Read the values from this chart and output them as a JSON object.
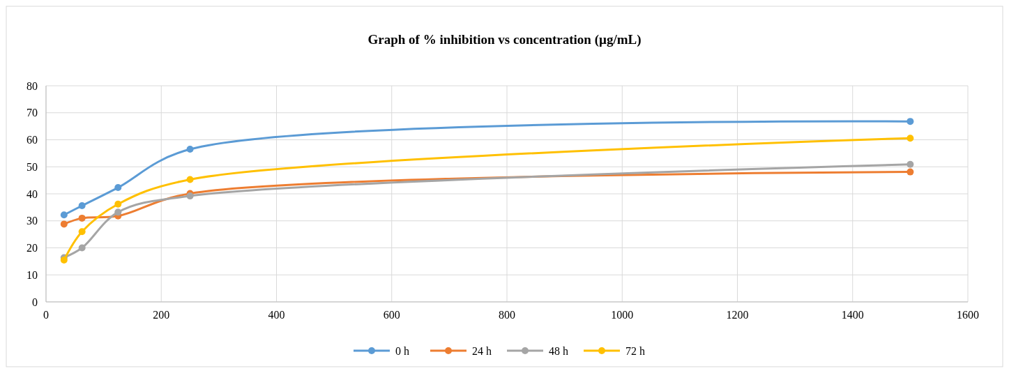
{
  "chart_data": {
    "type": "line",
    "title": "Graph of % inhibition vs concentration (µg/mL)",
    "x": [
      31.25,
      62.5,
      125,
      250,
      1500
    ],
    "series": [
      {
        "name": "0 h",
        "color": "#5b9bd5",
        "values": [
          32.2,
          35.6,
          42.3,
          56.5,
          66.8
        ]
      },
      {
        "name": "24 h",
        "color": "#ed7d31",
        "values": [
          28.8,
          31,
          31.8,
          40.1,
          48.1
        ]
      },
      {
        "name": "48 h",
        "color": "#a5a5a5",
        "values": [
          16.4,
          20,
          33.2,
          39.2,
          50.9
        ]
      },
      {
        "name": "72 h",
        "color": "#ffc000",
        "values": [
          15.5,
          26,
          36.2,
          45.3,
          60.6
        ]
      }
    ],
    "xlim": [
      0,
      1600
    ],
    "xticks": [
      0,
      200,
      400,
      600,
      800,
      1000,
      1200,
      1400,
      1600
    ],
    "ylim": [
      0,
      80
    ],
    "yticks": [
      0,
      10,
      20,
      30,
      40,
      50,
      60,
      70,
      80
    ],
    "grid": true,
    "legend": "bottom",
    "marker": "circle",
    "line_style": "solid"
  }
}
